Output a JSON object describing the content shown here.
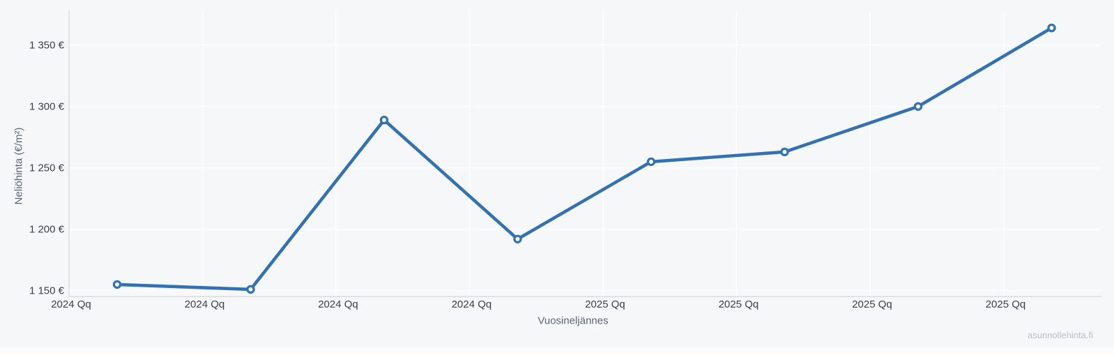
{
  "watermark": "asunnollehinta.fi",
  "chart_data": {
    "type": "line",
    "title": "",
    "xlabel": "Vuosineljännes",
    "ylabel": "Neliöhinta (€/m²)",
    "categories": [
      "2024 Qq",
      "2024 Qq",
      "2024 Qq",
      "2024 Qq",
      "2025 Qq",
      "2025 Qq",
      "2025 Qq",
      "2025 Qq"
    ],
    "values": [
      1155,
      1151,
      1289,
      1192,
      1255,
      1263,
      1300,
      1364
    ],
    "y_ticks": [
      1150,
      1200,
      1250,
      1300,
      1350
    ],
    "y_tick_labels": [
      "1 150 €",
      "1 200 €",
      "1 250 €",
      "1 300 €",
      "1 350 €"
    ],
    "ylim": [
      1145,
      1378
    ],
    "grid": true,
    "legend": false,
    "colors": {
      "line": "#3272b2",
      "marker_fill": "#fafbfc",
      "grid": "rgba(255,255,255,0.85)",
      "axis_line": "#d7dade",
      "tick_text": "#3b4149",
      "axis_title_text": "#5b6675",
      "watermark_text": "#b9bfc8"
    }
  }
}
